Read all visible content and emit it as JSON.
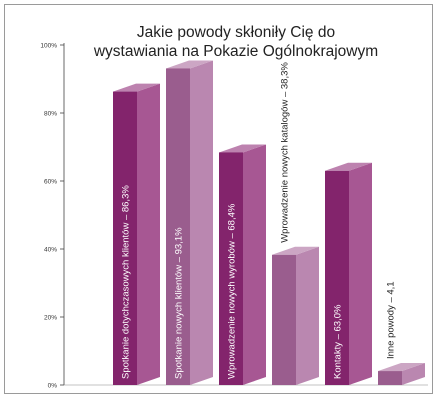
{
  "chart_data": {
    "type": "bar",
    "title_lines": [
      "Jakie powody skłoniły Cię do",
      "wystawiania na Pokazie Ogólnokrajowym"
    ],
    "xlabel": "",
    "ylabel": "",
    "ylim": [
      0,
      100
    ],
    "yticks": [
      "0%",
      "20%",
      "40%",
      "60%",
      "80%",
      "100%"
    ],
    "ytick_values": [
      0,
      20,
      40,
      60,
      80,
      100
    ],
    "bar_style": "3d",
    "label_placement": [
      "inside",
      "inside",
      "inside",
      "above",
      "inside",
      "above"
    ],
    "bars": [
      {
        "label": "Spotkanie dotychczasowych klientów – 86,3%",
        "value": 86.3,
        "color": "#8e2775"
      },
      {
        "label": "Spotkanie nowych klientów – 93,1%",
        "value": 93.1,
        "color": "#a7659a"
      },
      {
        "label": "Wprowadzenie nowych wyrobów – 68,4%",
        "value": 68.4,
        "color": "#8e2775"
      },
      {
        "label": "Wprowadzenie nowych katalogów – 38,3%",
        "value": 38.3,
        "color": "#a7659a"
      },
      {
        "label": "Kontakty – 63,0%",
        "value": 63.0,
        "color": "#8e2775"
      },
      {
        "label": "Inne powody – 4,1",
        "value": 4.1,
        "color": "#a7659a"
      }
    ]
  }
}
